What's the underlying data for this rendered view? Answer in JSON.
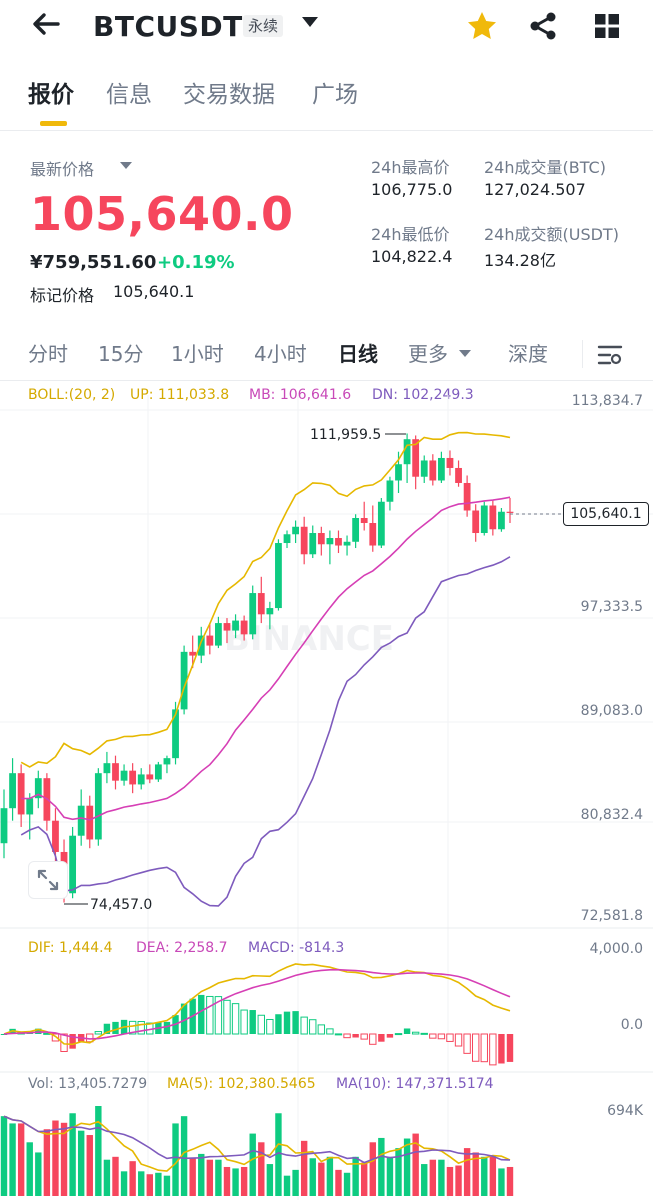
{
  "header": {
    "back_icon": "arrow-left-icon",
    "symbol": "BTCUSDT",
    "contract_type": "永续",
    "star_icon": "star-icon",
    "share_icon": "share-icon",
    "grid_icon": "grid-icon",
    "accent": "#F0B90B"
  },
  "tabs": [
    {
      "label": "报价",
      "active": true
    },
    {
      "label": "信息",
      "active": false
    },
    {
      "label": "交易数据",
      "active": false
    },
    {
      "label": "广场",
      "active": false
    }
  ],
  "quote": {
    "last_price_label": "最新价格",
    "last_price": "105,640.0",
    "cny_price": "¥759,551.60",
    "change": "+0.19%",
    "mark_price_label": "标记价格",
    "mark_price": "105,640.1",
    "high_label": "24h最高价",
    "high": "106,775.0",
    "low_label": "24h最低价",
    "low": "104,822.4",
    "vol_btc_label": "24h成交量(BTC)",
    "vol_btc": "127,024.507",
    "vol_usdt_label": "24h成交额(USDT)",
    "vol_usdt": "134.28亿",
    "price_color": "#F6465D",
    "change_color": "#0ECB81"
  },
  "timeframes": [
    {
      "label": "分时",
      "active": false
    },
    {
      "label": "15分",
      "active": false
    },
    {
      "label": "1小时",
      "active": false
    },
    {
      "label": "4小时",
      "active": false
    },
    {
      "label": "日线",
      "active": true
    },
    {
      "label": "更多",
      "active": false
    },
    {
      "label": "深度",
      "active": false
    }
  ],
  "settings_icon": "chart-settings-icon",
  "expand_icon": "expand-icon",
  "chart_data": {
    "type": "candlestick",
    "boll": {
      "label": "BOLL:(20, 2)",
      "up": "UP: 111,033.8",
      "mb": "MB: 106,641.6",
      "dn": "DN: 102,249.3"
    },
    "y_ticks": [
      "113,834.7",
      "97,333.5",
      "89,083.0",
      "80,832.4",
      "72,581.8"
    ],
    "current_price_label": "105,640.1",
    "max_label": "111,959.5",
    "min_label": "74,457.0",
    "watermark": "BINANCE",
    "macd": {
      "dif": "DIF: 1,444.4",
      "dea": "DEA: 2,258.7",
      "macd": "MACD: -814.3",
      "y_ticks": [
        "4,000.0",
        "0.0"
      ]
    },
    "volume": {
      "vol": "Vol: 13,405.7279",
      "ma5": "MA(5): 102,380.5465",
      "ma10": "MA(10): 147,371.5174",
      "y_tick": "694K"
    },
    "candles": [
      [
        79200,
        83500,
        78000,
        82000
      ],
      [
        82000,
        86000,
        81000,
        84800
      ],
      [
        84800,
        85500,
        80500,
        81500
      ],
      [
        81500,
        83200,
        79500,
        82800
      ],
      [
        82800,
        85000,
        82000,
        84400
      ],
      [
        84400,
        84800,
        80200,
        81000
      ],
      [
        81000,
        82000,
        76800,
        78500
      ],
      [
        78500,
        79500,
        74457,
        75200
      ],
      [
        75200,
        80500,
        74800,
        79800
      ],
      [
        79800,
        83500,
        79000,
        82200
      ],
      [
        82200,
        83000,
        78800,
        79500
      ],
      [
        79500,
        85200,
        79000,
        84800
      ],
      [
        84800,
        86500,
        84000,
        85600
      ],
      [
        85600,
        86200,
        83500,
        84200
      ],
      [
        84200,
        85500,
        83800,
        85000
      ],
      [
        85000,
        85600,
        83200,
        83900
      ],
      [
        83900,
        85200,
        83500,
        84700
      ],
      [
        84700,
        85500,
        84000,
        84300
      ],
      [
        84300,
        85700,
        84100,
        85500
      ],
      [
        85500,
        86200,
        84800,
        86000
      ],
      [
        86000,
        90500,
        85500,
        89900
      ],
      [
        89900,
        95000,
        89500,
        94500
      ],
      [
        94500,
        95800,
        93200,
        94200
      ],
      [
        94200,
        96500,
        93600,
        95800
      ],
      [
        95800,
        96800,
        94300,
        95000
      ],
      [
        95000,
        97300,
        94800,
        96800
      ],
      [
        96800,
        97200,
        95200,
        96200
      ],
      [
        96200,
        97500,
        95600,
        97000
      ],
      [
        97000,
        97400,
        95400,
        95900
      ],
      [
        95900,
        99800,
        95500,
        99200
      ],
      [
        99200,
        100500,
        96800,
        97500
      ],
      [
        97500,
        98500,
        96300,
        98000
      ],
      [
        98000,
        103500,
        97800,
        103200
      ],
      [
        103200,
        104200,
        102800,
        103900
      ],
      [
        103900,
        105000,
        103200,
        104500
      ],
      [
        104500,
        105300,
        101500,
        102300
      ],
      [
        102300,
        104600,
        102000,
        104000
      ],
      [
        104000,
        104500,
        102200,
        103100
      ],
      [
        103100,
        104200,
        101500,
        103600
      ],
      [
        103600,
        104200,
        102400,
        103000
      ],
      [
        103000,
        103800,
        102200,
        103300
      ],
      [
        103300,
        105500,
        102800,
        105200
      ],
      [
        105200,
        106500,
        104200,
        104800
      ],
      [
        104800,
        106200,
        102500,
        103000
      ],
      [
        103000,
        106800,
        102800,
        106500
      ],
      [
        106500,
        108500,
        105800,
        108200
      ],
      [
        108200,
        110500,
        107200,
        109500
      ],
      [
        109500,
        111959.5,
        108000,
        111500
      ],
      [
        111500,
        111800,
        107500,
        108500
      ],
      [
        108500,
        110200,
        108000,
        109800
      ],
      [
        109800,
        110300,
        107800,
        108200
      ],
      [
        108200,
        110500,
        108000,
        110000
      ],
      [
        110000,
        110600,
        108600,
        109200
      ],
      [
        109200,
        109800,
        107700,
        108000
      ],
      [
        108000,
        108600,
        105300,
        105800
      ],
      [
        105800,
        106300,
        103300,
        104000
      ],
      [
        104000,
        106500,
        103800,
        106200
      ],
      [
        106200,
        106600,
        103800,
        104300
      ],
      [
        104300,
        106000,
        104100,
        105700
      ],
      [
        105700,
        106800,
        104800,
        105640
      ]
    ]
  }
}
